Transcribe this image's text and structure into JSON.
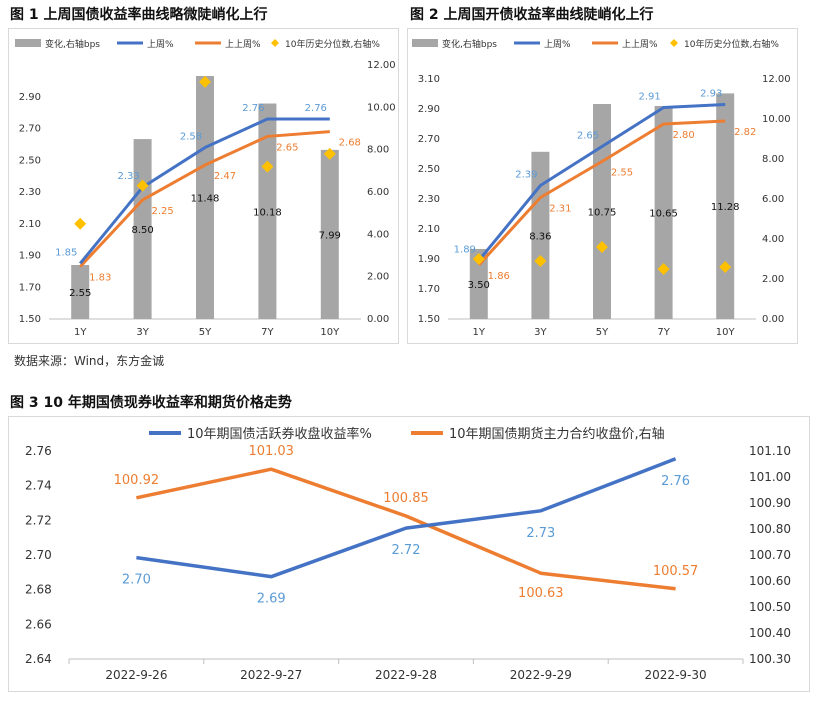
{
  "titles": {
    "fig1": "图 1  上周国债收益率曲线略微陡峭化上行",
    "fig2": "图 2  上周国开债收益率曲线陡峭化上行",
    "fig3": "图 3  10 年期国债现券收益率和期货价格走势"
  },
  "source": "数据来源：Wind，东方金诚",
  "colors": {
    "bar": "#a6a6a6",
    "blue": "#4472c4",
    "orange": "#ed7d31",
    "gold": "#ffc000",
    "labelBlue": "#5b9bd5",
    "labelOrange": "#ed7d31"
  },
  "chart_data": [
    {
      "id": "fig1",
      "type": "bar",
      "categories": [
        "1Y",
        "3Y",
        "5Y",
        "7Y",
        "10Y"
      ],
      "legend": [
        "变化,右轴bps",
        "上周%",
        "上上周%",
        "10年历史分位数,右轴%"
      ],
      "y_left": {
        "min": 1.5,
        "max": 3.1,
        "ticks": [
          "1.50",
          "1.70",
          "1.90",
          "2.10",
          "2.30",
          "2.50",
          "2.70",
          "2.90"
        ]
      },
      "y_right": {
        "min": 0,
        "max": 12,
        "ticks": [
          "0.00",
          "2.00",
          "4.00",
          "6.00",
          "8.00",
          "10.00",
          "12.00"
        ]
      },
      "bars": [
        2.55,
        8.5,
        11.48,
        10.18,
        7.99
      ],
      "bar_labels": [
        "2.55",
        "8.50",
        "11.48",
        "10.18",
        "7.99"
      ],
      "last_week": [
        1.85,
        2.33,
        2.58,
        2.76,
        2.76
      ],
      "last_week_labels": [
        "1.85",
        "2.33",
        "2.58",
        "2.76",
        "2.76"
      ],
      "week_before": [
        1.83,
        2.25,
        2.47,
        2.65,
        2.68
      ],
      "week_before_labels": [
        "1.83",
        "2.25",
        "2.47",
        "2.65",
        "2.68"
      ],
      "percentile": [
        4.5,
        6.3,
        11.2,
        7.2,
        7.8
      ]
    },
    {
      "id": "fig2",
      "type": "bar",
      "categories": [
        "1Y",
        "3Y",
        "5Y",
        "7Y",
        "10Y"
      ],
      "legend": [
        "变化,右轴bps",
        "上周%",
        "上上周%",
        "10年历史分位数,右轴%"
      ],
      "y_left": {
        "min": 1.5,
        "max": 3.1,
        "ticks": [
          "1.50",
          "1.70",
          "1.90",
          "2.10",
          "2.30",
          "2.50",
          "2.70",
          "2.90",
          "3.10"
        ]
      },
      "y_right": {
        "min": 0,
        "max": 12,
        "ticks": [
          "0.00",
          "2.00",
          "4.00",
          "6.00",
          "8.00",
          "10.00",
          "12.00"
        ]
      },
      "bars": [
        3.5,
        8.36,
        10.75,
        10.65,
        11.28
      ],
      "bar_labels": [
        "3.50",
        "8.36",
        "10.75",
        "10.65",
        "11.28"
      ],
      "last_week": [
        1.89,
        2.39,
        2.65,
        2.91,
        2.93
      ],
      "last_week_labels": [
        "1.89",
        "2.39",
        "2.65",
        "2.91",
        "2.93"
      ],
      "week_before": [
        1.86,
        2.31,
        2.55,
        2.8,
        2.82
      ],
      "week_before_labels": [
        "1.86",
        "2.31",
        "2.55",
        "2.80",
        "2.82"
      ],
      "percentile": [
        3.0,
        2.9,
        3.6,
        2.5,
        2.6
      ]
    },
    {
      "id": "fig3",
      "type": "line",
      "categories": [
        "2022-9-26",
        "2022-9-27",
        "2022-9-28",
        "2022-9-29",
        "2022-9-30"
      ],
      "legend": [
        "10年期国债活跃券收盘收益率%",
        "10年期国债期货主力合约收盘价,右轴"
      ],
      "y_left": {
        "min": 2.64,
        "max": 2.76,
        "ticks": [
          "2.64",
          "2.66",
          "2.68",
          "2.70",
          "2.72",
          "2.74",
          "2.76"
        ]
      },
      "y_right": {
        "min": 100.3,
        "max": 101.1,
        "ticks": [
          "100.30",
          "100.40",
          "100.50",
          "100.60",
          "100.70",
          "100.80",
          "100.90",
          "101.00",
          "101.10"
        ]
      },
      "yield": [
        2.6985,
        2.6875,
        2.7155,
        2.7255,
        2.7555
      ],
      "yield_labels": [
        "2.70",
        "2.69",
        "2.72",
        "2.73",
        "2.76"
      ],
      "futures": [
        100.92,
        101.03,
        100.85,
        100.63,
        100.57
      ],
      "futures_labels": [
        "100.92",
        "101.03",
        "100.85",
        "100.63",
        "100.57"
      ]
    }
  ]
}
